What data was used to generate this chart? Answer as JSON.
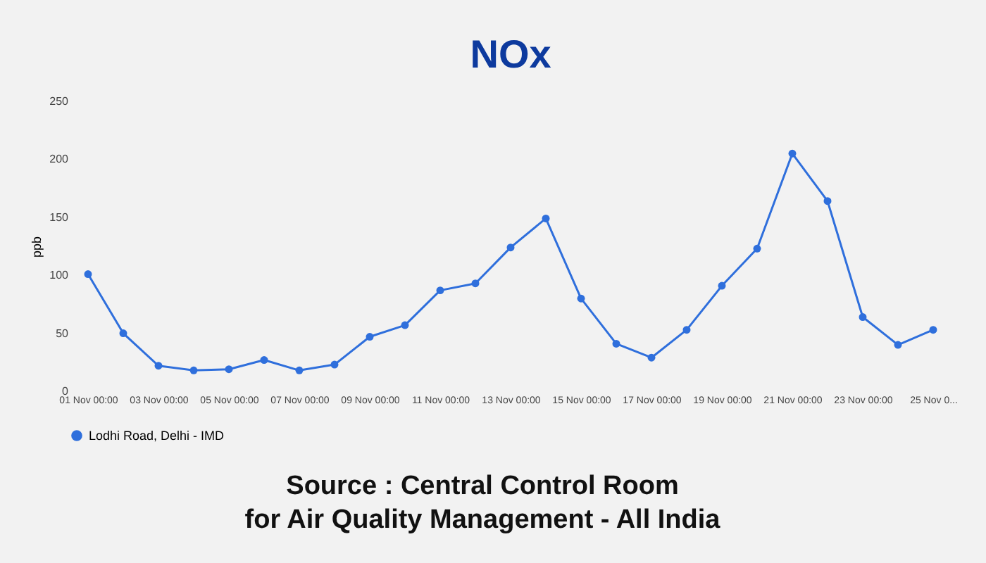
{
  "chart_data": {
    "type": "line",
    "title": "NOx",
    "ylabel": "ppb",
    "categories": [
      "01 Nov 00:00",
      null,
      "03 Nov 00:00",
      null,
      "05 Nov 00:00",
      null,
      "07 Nov 00:00",
      null,
      "09 Nov 00:00",
      null,
      "11 Nov 00:00",
      null,
      "13 Nov 00:00",
      null,
      "15 Nov 00:00",
      null,
      "17 Nov 00:00",
      null,
      "19 Nov 00:00",
      null,
      "21 Nov 00:00",
      null,
      "23 Nov 00:00",
      null,
      "25 Nov 0..."
    ],
    "series": [
      {
        "name": "Lodhi Road, Delhi - IMD",
        "color": "#2f6fdc",
        "values": [
          101,
          50,
          22,
          18,
          19,
          27,
          18,
          23,
          47,
          57,
          87,
          93,
          124,
          149,
          80,
          41,
          29,
          53,
          91,
          123,
          205,
          164,
          64,
          40,
          53
        ]
      }
    ],
    "ylim": [
      0,
      250
    ],
    "yticks": [
      0,
      50,
      100,
      150,
      200,
      250
    ],
    "grid": false,
    "legend": "bottom",
    "marker": "circle",
    "line_style": "solid",
    "annotations": [
      "Source : Central Control Room\nfor Air Quality Management - All India"
    ]
  }
}
